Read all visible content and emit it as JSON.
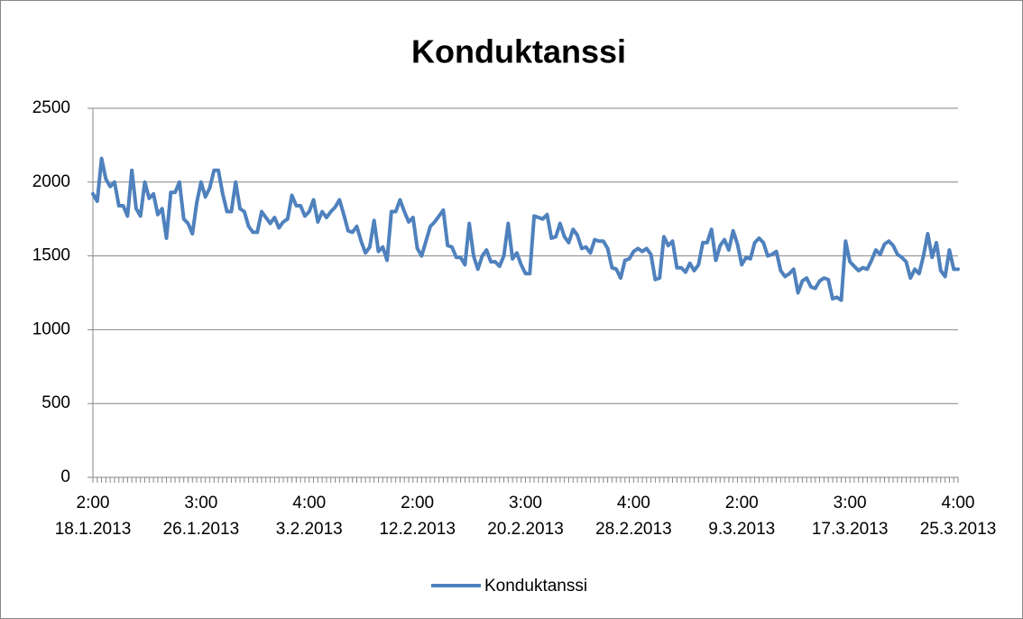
{
  "chart_data": {
    "type": "line",
    "title": "Konduktanssi",
    "categories": [
      "2:00\n18.1.2013",
      null,
      null,
      null,
      null,
      null,
      null,
      null,
      null,
      null,
      null,
      null,
      null,
      null,
      null,
      null,
      null,
      null,
      null,
      null,
      null,
      null,
      null,
      null,
      null,
      "3:00\n26.1.2013",
      null,
      null,
      null,
      null,
      null,
      null,
      null,
      null,
      null,
      null,
      null,
      null,
      null,
      null,
      null,
      null,
      null,
      null,
      null,
      null,
      null,
      null,
      null,
      null,
      "4:00\n3.2.2013",
      null,
      null,
      null,
      null,
      null,
      null,
      null,
      null,
      null,
      null,
      null,
      null,
      null,
      null,
      null,
      null,
      null,
      null,
      null,
      null,
      null,
      null,
      null,
      null,
      "2:00\n12.2.2013",
      null,
      null,
      null,
      null,
      null,
      null,
      null,
      null,
      null,
      null,
      null,
      null,
      null,
      null,
      null,
      null,
      null,
      null,
      null,
      null,
      null,
      null,
      null,
      null,
      "3:00\n20.2.2013",
      null,
      null,
      null,
      null,
      null,
      null,
      null,
      null,
      null,
      null,
      null,
      null,
      null,
      null,
      null,
      null,
      null,
      null,
      null,
      null,
      null,
      null,
      null,
      null,
      "4:00\n28.2.2013",
      null,
      null,
      null,
      null,
      null,
      null,
      null,
      null,
      null,
      null,
      null,
      null,
      null,
      null,
      null,
      null,
      null,
      null,
      null,
      null,
      null,
      null,
      null,
      null,
      "2:00\n9.3.2013",
      null,
      null,
      null,
      null,
      null,
      null,
      null,
      null,
      null,
      null,
      null,
      null,
      null,
      null,
      null,
      null,
      null,
      null,
      null,
      null,
      null,
      null,
      null,
      null,
      "3:00\n17.3.2013",
      null,
      null,
      null,
      null,
      null,
      null,
      null,
      null,
      null,
      null,
      null,
      null,
      null,
      null,
      null,
      null,
      null,
      null,
      null,
      null,
      null,
      null,
      null,
      null,
      "4:00\n25.3.2013"
    ],
    "series": [
      {
        "name": "Konduktanssi",
        "color": "#4f81bd",
        "values": [
          1920,
          1870,
          2160,
          2020,
          1970,
          2000,
          1840,
          1840,
          1770,
          2080,
          1820,
          1770,
          2000,
          1890,
          1920,
          1780,
          1820,
          1620,
          1930,
          1930,
          2000,
          1750,
          1720,
          1650,
          1860,
          2000,
          1900,
          1960,
          2080,
          2080,
          1920,
          1800,
          1800,
          2000,
          1820,
          1800,
          1700,
          1660,
          1660,
          1800,
          1760,
          1720,
          1760,
          1690,
          1730,
          1750,
          1910,
          1840,
          1840,
          1770,
          1800,
          1880,
          1730,
          1800,
          1760,
          1800,
          1830,
          1880,
          1780,
          1670,
          1660,
          1700,
          1600,
          1520,
          1560,
          1740,
          1530,
          1560,
          1470,
          1800,
          1800,
          1880,
          1800,
          1730,
          1760,
          1550,
          1500,
          1600,
          1700,
          1730,
          1770,
          1810,
          1570,
          1560,
          1490,
          1490,
          1440,
          1720,
          1500,
          1410,
          1500,
          1540,
          1460,
          1460,
          1430,
          1500,
          1720,
          1480,
          1520,
          1440,
          1380,
          1380,
          1770,
          1760,
          1750,
          1780,
          1620,
          1630,
          1720,
          1630,
          1590,
          1680,
          1640,
          1550,
          1560,
          1520,
          1610,
          1600,
          1600,
          1550,
          1420,
          1410,
          1350,
          1470,
          1480,
          1530,
          1550,
          1530,
          1550,
          1510,
          1340,
          1350,
          1630,
          1570,
          1600,
          1420,
          1420,
          1390,
          1450,
          1400,
          1440,
          1590,
          1590,
          1680,
          1470,
          1570,
          1610,
          1540,
          1670,
          1580,
          1440,
          1490,
          1480,
          1590,
          1620,
          1590,
          1500,
          1510,
          1530,
          1400,
          1360,
          1380,
          1410,
          1250,
          1330,
          1350,
          1290,
          1280,
          1330,
          1350,
          1340,
          1210,
          1220,
          1200,
          1600,
          1460,
          1430,
          1400,
          1420,
          1410,
          1470,
          1540,
          1510,
          1580,
          1600,
          1570,
          1510,
          1490,
          1460,
          1350,
          1410,
          1380,
          1500,
          1650,
          1490,
          1590,
          1400,
          1360,
          1540,
          1410,
          1410
        ]
      }
    ],
    "ylim": [
      0,
      2500
    ],
    "yticks": [
      0,
      500,
      1000,
      1500,
      2000,
      2500
    ],
    "grid": true,
    "legend": "bottom"
  }
}
